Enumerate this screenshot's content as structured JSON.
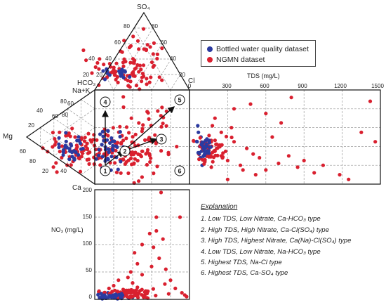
{
  "legend": [
    {
      "name": "Bottled water quality dataset",
      "color": "#2b3aa0"
    },
    {
      "name": "NGMN dataset",
      "color": "#d9202f"
    }
  ],
  "piper": {
    "anion_apex": "SO₄",
    "anion_left": "HCO₃",
    "anion_right": "Cl",
    "cation_left": "Mg",
    "cation_right": "Na+K",
    "cation_bottom": "Ca",
    "ticks_so4": [
      "80",
      "60",
      "40",
      "20"
    ],
    "ticks_hco3": [
      "20",
      "40",
      "60",
      "80"
    ],
    "ticks_mg": [
      "20",
      "40",
      "60",
      "80"
    ],
    "ticks_ca": [
      "80",
      "60",
      "40",
      "20"
    ],
    "ticks_diamond": [
      "20",
      "40",
      "60",
      "80"
    ],
    "group_numbers": [
      "1",
      "2",
      "3",
      "4",
      "5",
      "6"
    ]
  },
  "chart_data": [
    {
      "type": "scatter",
      "title": "",
      "xlabel": "TDS (mg/L)",
      "ylabel": "",
      "xlim": [
        0,
        1500
      ],
      "xticks": [
        "0",
        "300",
        "600",
        "900",
        "1200",
        "1500"
      ],
      "series": [
        {
          "name": "Bottled water quality dataset",
          "color": "#2b3aa0",
          "points": [
            [
              60,
              0.45
            ],
            [
              80,
              0.4
            ],
            [
              95,
              0.35
            ],
            [
              110,
              0.3
            ],
            [
              70,
              0.55
            ],
            [
              120,
              0.25
            ],
            [
              90,
              0.5
            ],
            [
              130,
              0.42
            ],
            [
              100,
              0.2
            ],
            [
              65,
              0.62
            ],
            [
              140,
              0.33
            ],
            [
              85,
              0.28
            ]
          ]
        },
        {
          "name": "NGMN dataset",
          "color": "#d9202f",
          "points": [
            [
              150,
              0.4
            ],
            [
              200,
              0.35
            ],
            [
              250,
              0.3
            ],
            [
              300,
              0.25
            ],
            [
              350,
              0.45
            ],
            [
              400,
              0.2
            ],
            [
              450,
              0.38
            ],
            [
              500,
              0.32
            ],
            [
              550,
              0.28
            ],
            [
              600,
              0.15
            ],
            [
              650,
              0.5
            ],
            [
              700,
              0.22
            ],
            [
              780,
              0.3
            ],
            [
              850,
              0.18
            ],
            [
              900,
              0.25
            ],
            [
              980,
              0.12
            ],
            [
              1050,
              0.2
            ],
            [
              1180,
              0.1
            ],
            [
              1250,
              0.05
            ],
            [
              1350,
              0.55
            ],
            [
              1420,
              0.88
            ],
            [
              1460,
              0.45
            ],
            [
              200,
              0.7
            ],
            [
              350,
              0.8
            ],
            [
              480,
              0.85
            ],
            [
              600,
              0.75
            ],
            [
              720,
              0.65
            ],
            [
              800,
              0.92
            ],
            [
              330,
              0.6
            ],
            [
              250,
              0.55
            ],
            [
              180,
              0.62
            ],
            [
              420,
              0.15
            ],
            [
              520,
              0.1
            ],
            [
              300,
              0.05
            ]
          ]
        }
      ]
    },
    {
      "type": "scatter",
      "title": "",
      "xlabel": "",
      "ylabel": "NO₃ (mg/L)",
      "ylim": [
        0,
        200
      ],
      "yticks": [
        "0",
        "50",
        "100",
        "150",
        "200"
      ],
      "series": [
        {
          "name": "Bottled water quality dataset",
          "color": "#2b3aa0",
          "points": [
            [
              0.05,
              3
            ],
            [
              0.08,
              1
            ],
            [
              0.1,
              5
            ],
            [
              0.12,
              2
            ],
            [
              0.15,
              8
            ],
            [
              0.18,
              4
            ],
            [
              0.2,
              6
            ],
            [
              0.22,
              3
            ],
            [
              0.25,
              10
            ],
            [
              0.28,
              2
            ],
            [
              0.3,
              5
            ],
            [
              0.33,
              7
            ],
            [
              0.36,
              2
            ],
            [
              0.4,
              4
            ],
            [
              0.14,
              12
            ],
            [
              0.24,
              1
            ]
          ]
        },
        {
          "name": "NGMN dataset",
          "color": "#d9202f",
          "points": [
            [
              0.1,
              12
            ],
            [
              0.15,
              20
            ],
            [
              0.2,
              25
            ],
            [
              0.25,
              35
            ],
            [
              0.3,
              18
            ],
            [
              0.35,
              40
            ],
            [
              0.4,
              30
            ],
            [
              0.45,
              22
            ],
            [
              0.5,
              45
            ],
            [
              0.55,
              15
            ],
            [
              0.6,
              60
            ],
            [
              0.62,
              95
            ],
            [
              0.65,
              150
            ],
            [
              0.68,
              75
            ],
            [
              0.7,
              195
            ],
            [
              0.72,
              110
            ],
            [
              0.75,
              55
            ],
            [
              0.78,
              10
            ],
            [
              0.8,
              35
            ],
            [
              0.85,
              20
            ],
            [
              0.9,
              150
            ],
            [
              0.92,
              12
            ],
            [
              0.95,
              8
            ],
            [
              0.97,
              5
            ],
            [
              0.5,
              100
            ],
            [
              0.42,
              85
            ],
            [
              0.58,
              120
            ],
            [
              0.38,
              50
            ],
            [
              0.65,
              125
            ],
            [
              0.74,
              28
            ],
            [
              0.2,
              8
            ],
            [
              0.3,
              5
            ],
            [
              0.55,
              3
            ],
            [
              0.45,
              65
            ]
          ]
        }
      ]
    }
  ],
  "explanation": {
    "title": "Explanation",
    "items": [
      "1. Low TDS, Low Nitrate, Ca-HCO₃ type",
      "2. High TDS, High Nitrate, Ca-Cl(SO₄) type",
      "3. High TDS, Highest Nitrate, Ca(Na)-Cl(SO₄) type",
      "4. Low TDS, Low Nitrate, Na-HCO₃ type",
      "5. Highest TDS, Na-Cl type",
      "6. Highest TDS, Ca-SO₄ type"
    ]
  }
}
